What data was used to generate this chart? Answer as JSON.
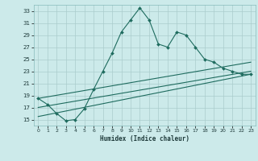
{
  "xlabel": "Humidex (Indice chaleur)",
  "background_color": "#cceaea",
  "grid_color": "#aacccc",
  "line_color": "#1e6b5e",
  "xlim": [
    -0.5,
    23.5
  ],
  "ylim": [
    14,
    34
  ],
  "yticks": [
    15,
    17,
    19,
    21,
    23,
    25,
    27,
    29,
    31,
    33
  ],
  "xticks": [
    0,
    1,
    2,
    3,
    4,
    5,
    6,
    7,
    8,
    9,
    10,
    11,
    12,
    13,
    14,
    15,
    16,
    17,
    18,
    19,
    20,
    21,
    22,
    23
  ],
  "main_line_x": [
    0,
    1,
    2,
    3,
    4,
    5,
    6,
    7,
    8,
    9,
    10,
    11,
    12,
    13,
    14,
    15,
    16,
    17,
    18,
    19,
    20,
    21,
    22,
    23
  ],
  "main_line_y": [
    18.5,
    17.5,
    16.0,
    14.8,
    15.0,
    16.8,
    20.0,
    23.0,
    26.0,
    29.5,
    31.5,
    33.5,
    31.5,
    27.5,
    27.0,
    29.5,
    29.0,
    27.0,
    25.0,
    24.5,
    23.5,
    23.0,
    22.5,
    22.5
  ],
  "line2_x": [
    0,
    23
  ],
  "line2_y": [
    18.5,
    24.5
  ],
  "line3_x": [
    0,
    23
  ],
  "line3_y": [
    17.0,
    23.0
  ],
  "line4_x": [
    0,
    23
  ],
  "line4_y": [
    15.5,
    22.5
  ]
}
